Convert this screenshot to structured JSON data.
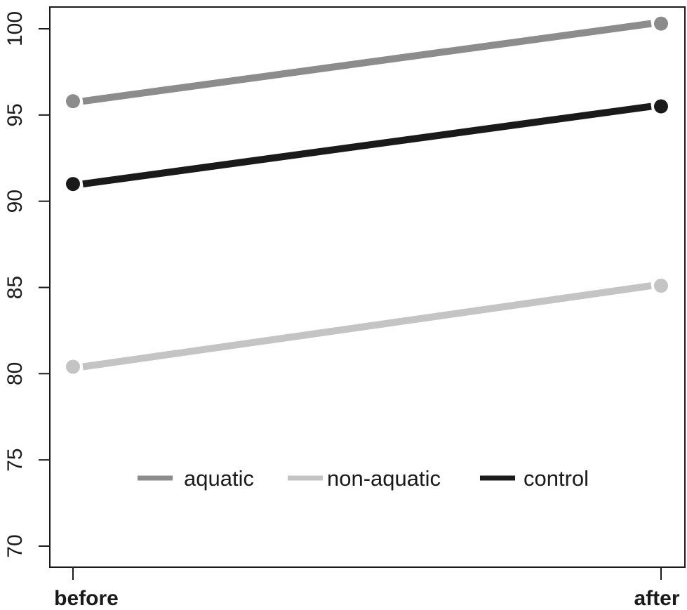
{
  "chart_data": {
    "type": "line",
    "title": "",
    "xlabel": "",
    "ylabel": "",
    "categories": [
      "before",
      "after"
    ],
    "series": [
      {
        "name": "aquatic",
        "values": [
          95.8,
          100.3
        ],
        "color": "#8c8c8c"
      },
      {
        "name": "non-aquatic",
        "values": [
          80.4,
          85.1
        ],
        "color": "#c4c4c4"
      },
      {
        "name": "control",
        "values": [
          91.0,
          95.5
        ],
        "color": "#1a1a1a"
      }
    ],
    "ylim": [
      68.8,
      101.3
    ],
    "yticks": [
      70,
      75,
      80,
      85,
      90,
      95,
      100
    ],
    "ytick_labels": [
      "70",
      "75",
      "80",
      "85",
      "90",
      "95",
      "100"
    ],
    "grid": false,
    "legend": {
      "position": "inside-bottom-center",
      "horizontal": true,
      "entries": [
        "aquatic",
        "non-aquatic",
        "control"
      ]
    }
  }
}
